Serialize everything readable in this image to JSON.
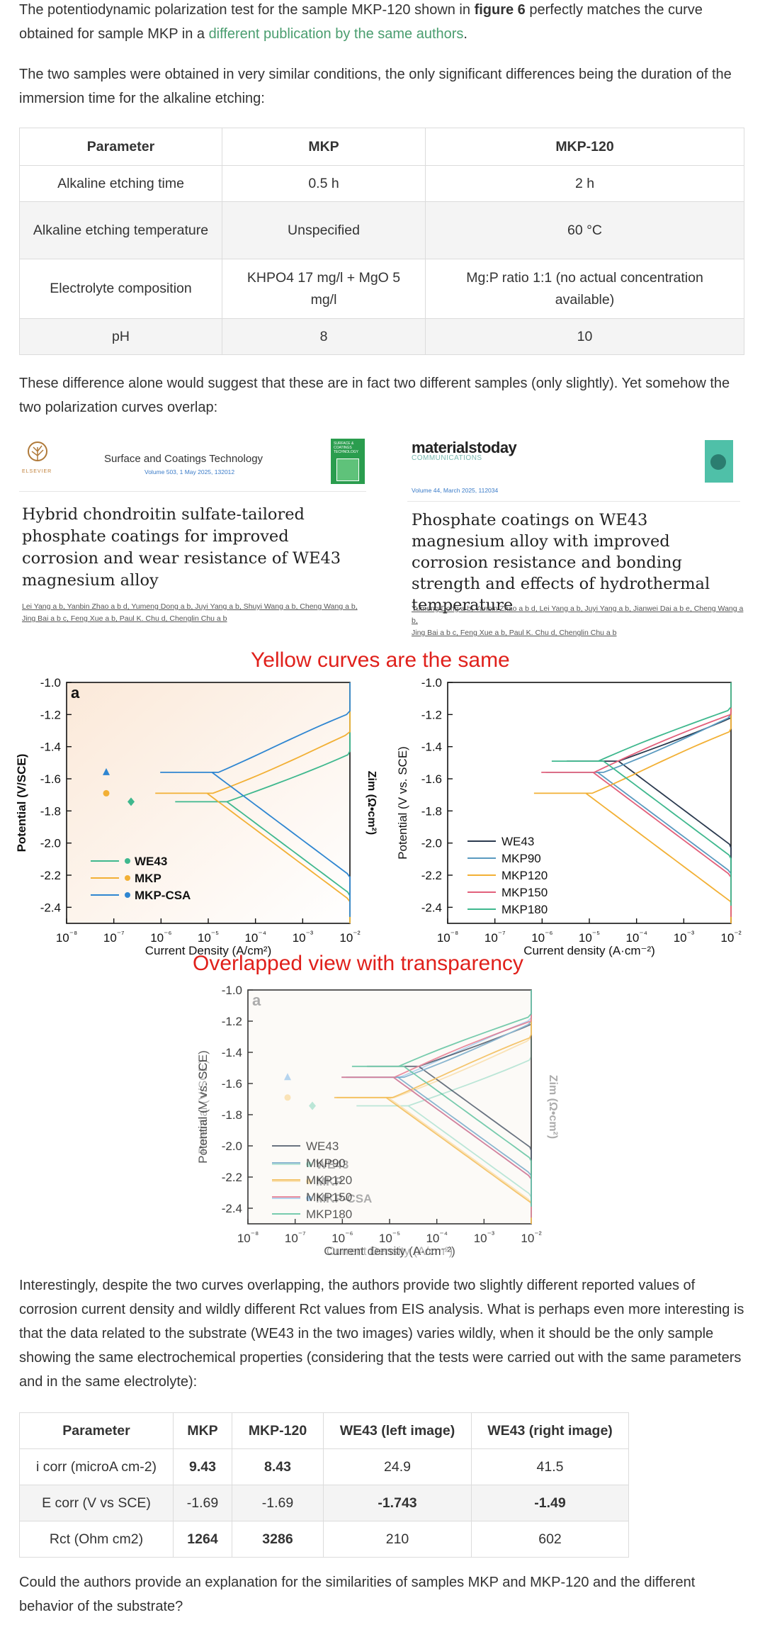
{
  "para1": {
    "pre": "The potentiodynamic polarization test for the sample MKP-120 shown in ",
    "bold": "figure 6",
    "mid": " perfectly matches the curve obtained for sample MKP in a ",
    "link": "different publication by the same authors",
    "post": "."
  },
  "para2": "The two samples were obtained in very similar conditions, the only significant differences being the duration of the immersion time for the alkaline etching:",
  "table1": {
    "headers": [
      "Parameter",
      "MKP",
      "MKP-120"
    ],
    "rows": [
      [
        "Alkaline etching time",
        "0.5 h",
        "2 h"
      ],
      [
        "Alkaline etching temperature",
        "Unspecified",
        "60 °C"
      ],
      [
        "Electrolyte composition",
        "KHPO4 17 mg/l + MgO 5 mg/l",
        "Mg:P ratio 1:1 (no actual concentration available)"
      ],
      [
        "pH",
        "8",
        "10"
      ]
    ]
  },
  "para3": "These difference alone would suggest that these are in fact two different samples (only slightly). Yet somehow the two polarization curves overlap:",
  "left_citation": {
    "publisher": "ELSEVIER",
    "journal": "Surface and Coatings Technology",
    "volume": "Volume 503, 1 May 2025, 132012",
    "cover_text": "SURFACE & COATINGS TECHNOLOGY",
    "title": "Hybrid chondroitin sulfate-tailored phosphate coatings for improved corrosion and wear resistance of WE43 magnesium alloy",
    "authors_line1": "Lei Yang a b, Yanbin Zhao a b d, Yumeng Dong a b, Juyi Yang a b, Shuyi Wang a b, Cheng Wang a b,",
    "authors_line2": "Jing Bai a b c, Feng Xue a b, Paul K. Chu d, Chenglin Chu a b"
  },
  "right_citation": {
    "journal_bold": "materialstoday",
    "journal_sub": "COMMUNICATIONS",
    "volume": "Volume 44, March 2025, 112034",
    "title": "Phosphate coatings on WE43 magnesium alloy with improved corrosion resistance and bonding strength and effects of hydrothermal temperature",
    "authors_line1": "Yumeng Dong a b, Yanbin Zhao a b d, Lei Yang a b, Juyi Yang a b, Jianwei Dai a b e, Cheng Wang a b,",
    "authors_line2": "Jing Bai a b c, Feng Xue a b, Paul K. Chu d, Chenglin Chu a b"
  },
  "annotation_top": "Yellow curves are the same",
  "annotation_overlap": "Overlapped view with transparency",
  "chart_data": [
    {
      "type": "line",
      "panel_label": "a",
      "xlabel": "Current Density (A/cm²)",
      "ylabel": "Potential (V/SCE)",
      "y2label": "Zim (Ω•cm²)",
      "x_scale": "log",
      "xlim": [
        1e-08,
        0.01
      ],
      "ylim": [
        -2.5,
        -1.0
      ],
      "xticks": [
        "10⁻⁸",
        "10⁻⁷",
        "10⁻⁶",
        "10⁻⁵",
        "10⁻⁴",
        "10⁻³",
        "10⁻²"
      ],
      "yticks": [
        "-1.0",
        "-1.2",
        "-1.4",
        "-1.6",
        "-1.8",
        "-2.0",
        "-2.2",
        "-2.4"
      ],
      "legend_position": "bottom-left",
      "series": [
        {
          "name": "WE43",
          "color": "#3fb88e",
          "marker": "diamond",
          "ecorr": -1.743,
          "icorr": 2.49e-05
        },
        {
          "name": "MKP",
          "color": "#f2b035",
          "marker": "heart",
          "ecorr": -1.69,
          "icorr": 9.43e-06
        },
        {
          "name": "MKP-CSA",
          "color": "#2f86d1",
          "marker": "triangle",
          "ecorr": -1.56,
          "icorr": 1.2e-05
        }
      ]
    },
    {
      "type": "line",
      "xlabel": "Current density (A·cm⁻²)",
      "ylabel": "Potential (V vs. SCE)",
      "x_scale": "log",
      "xlim": [
        1e-08,
        0.01
      ],
      "ylim": [
        -2.5,
        -1.0
      ],
      "xticks": [
        "10⁻⁸",
        "10⁻⁷",
        "10⁻⁶",
        "10⁻⁵",
        "10⁻⁴",
        "10⁻³",
        "10⁻²"
      ],
      "yticks": [
        "-1.0",
        "-1.2",
        "-1.4",
        "-1.6",
        "-1.8",
        "-2.0",
        "-2.2",
        "-2.4"
      ],
      "legend_position": "bottom-left",
      "series": [
        {
          "name": "WE43",
          "color": "#2b3a4f",
          "ecorr": -1.49,
          "icorr": 4.15e-05
        },
        {
          "name": "MKP90",
          "color": "#5a9ac0",
          "ecorr": -1.56,
          "icorr": 1.5e-05
        },
        {
          "name": "MKP120",
          "color": "#f2b035",
          "ecorr": -1.69,
          "icorr": 8.43e-06
        },
        {
          "name": "MKP150",
          "color": "#e2607b",
          "ecorr": -1.56,
          "icorr": 1.2e-05
        },
        {
          "name": "MKP180",
          "color": "#3fb88e",
          "ecorr": -1.49,
          "icorr": 2e-05
        }
      ]
    }
  ],
  "para4": "Interestingly, despite the two curves overlapping, the authors provide two slightly different reported values of corrosion current density and wildly different Rct values from EIS analysis. What is perhaps even more interesting is that the data related to the substrate (WE43 in the two images) varies wildly, when it should be the only sample showing the same electrochemical properties (considering that the tests were carried out with the same parameters and in the same electrolyte):",
  "table2": {
    "headers": [
      "Parameter",
      "MKP",
      "MKP-120",
      "WE43 (left image)",
      "WE43 (right image)"
    ],
    "rows": [
      [
        "i corr (microA cm-2)",
        "9.43",
        "8.43",
        "24.9",
        "41.5"
      ],
      [
        "E corr (V vs SCE)",
        "-1.69",
        "-1.69",
        "-1.743",
        "-1.49"
      ],
      [
        "Rct (Ohm cm2)",
        "1264",
        "3286",
        "210",
        "602"
      ]
    ]
  },
  "para5": "Could the authors provide an explanation for the similarities of samples MKP and MKP-120 and the different behavior of the substrate?"
}
